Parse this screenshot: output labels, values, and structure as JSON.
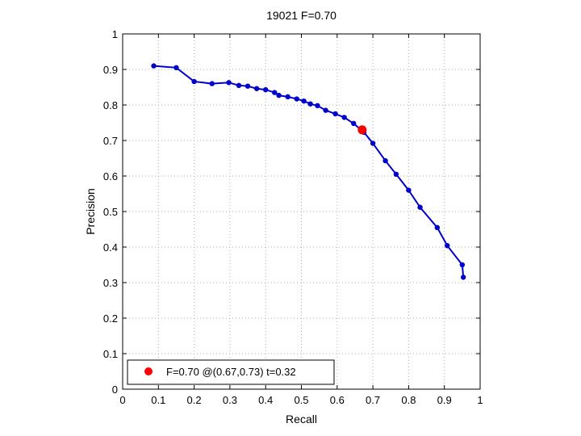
{
  "chart_data": {
    "type": "line",
    "title": "19021 F=0.70",
    "xlabel": "Recall",
    "ylabel": "Precision",
    "xlim": [
      0,
      1
    ],
    "ylim": [
      0,
      1
    ],
    "xticks": [
      "0",
      "0.1",
      "0.2",
      "0.3",
      "0.4",
      "0.5",
      "0.6",
      "0.7",
      "0.8",
      "0.9",
      "1"
    ],
    "yticks": [
      "0",
      "0.1",
      "0.2",
      "0.3",
      "0.4",
      "0.5",
      "0.6",
      "0.7",
      "0.8",
      "0.9",
      "1"
    ],
    "grid": true,
    "legend_position": "bottom-left",
    "series": [
      {
        "color": "#0000cc",
        "points": [
          [
            0.087,
            0.91
          ],
          [
            0.15,
            0.905
          ],
          [
            0.2,
            0.866
          ],
          [
            0.25,
            0.86
          ],
          [
            0.297,
            0.863
          ],
          [
            0.325,
            0.855
          ],
          [
            0.35,
            0.853
          ],
          [
            0.375,
            0.846
          ],
          [
            0.4,
            0.843
          ],
          [
            0.425,
            0.835
          ],
          [
            0.437,
            0.827
          ],
          [
            0.462,
            0.823
          ],
          [
            0.487,
            0.817
          ],
          [
            0.507,
            0.811
          ],
          [
            0.525,
            0.803
          ],
          [
            0.545,
            0.798
          ],
          [
            0.568,
            0.785
          ],
          [
            0.595,
            0.775
          ],
          [
            0.62,
            0.765
          ],
          [
            0.646,
            0.748
          ],
          [
            0.675,
            0.723
          ],
          [
            0.7,
            0.692
          ],
          [
            0.735,
            0.643
          ],
          [
            0.765,
            0.605
          ],
          [
            0.8,
            0.56
          ],
          [
            0.832,
            0.512
          ],
          [
            0.88,
            0.455
          ],
          [
            0.908,
            0.404
          ],
          [
            0.95,
            0.35
          ],
          [
            0.953,
            0.315
          ]
        ]
      }
    ],
    "highlight_point": {
      "x": 0.67,
      "y": 0.73,
      "color": "#ff0000",
      "label": "F=0.70 @(0.67,0.73) t=0.32"
    }
  }
}
